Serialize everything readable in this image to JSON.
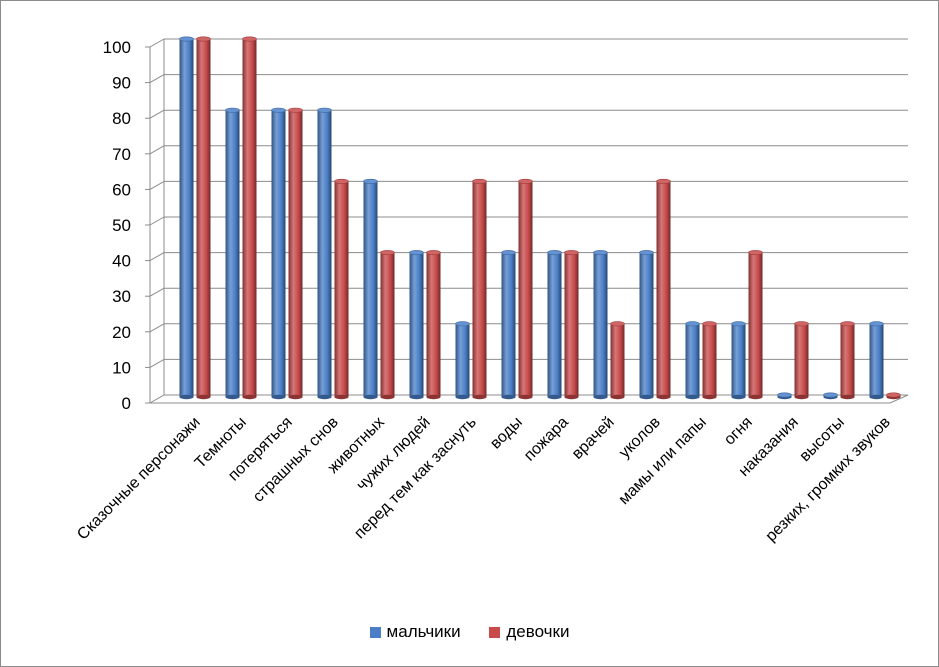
{
  "chart_data": {
    "type": "bar",
    "categories": [
      "Сказочные персонажи",
      "Темноты",
      "потеряться",
      "страшных снов",
      "животных",
      "чужих людей",
      "перед тем как заснуть",
      "воды",
      "пожара",
      "врачей",
      "уколов",
      "мамы или папы",
      "огня",
      "наказания",
      "высоты",
      "резких, громких звуков"
    ],
    "series": [
      {
        "name": "мальчики",
        "color": "#4a7fc8",
        "values": [
          100,
          80,
          80,
          80,
          60,
          40,
          20,
          40,
          40,
          40,
          40,
          20,
          20,
          0,
          0,
          20
        ]
      },
      {
        "name": "девочки",
        "color": "#c84a4a",
        "values": [
          100,
          100,
          80,
          60,
          40,
          40,
          60,
          60,
          40,
          20,
          60,
          20,
          40,
          20,
          20,
          0
        ]
      }
    ],
    "ylim": [
      0,
      100
    ],
    "yticks": [
      0,
      10,
      20,
      30,
      40,
      50,
      60,
      70,
      80,
      90,
      100
    ],
    "grid": true,
    "legend_position": "bottom",
    "style": "3d-cylinder"
  }
}
